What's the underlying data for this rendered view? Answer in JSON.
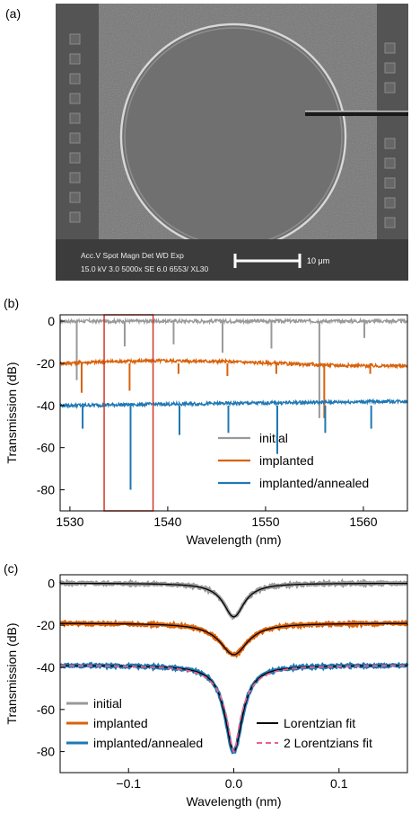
{
  "figure": {
    "panel_a": {
      "label": "(a)",
      "sem_info": {
        "row1": "Acc.V   Spot Magn    Det  WD   Exp",
        "row2": "15.0 kV 3.0   5000x    SE   6.0   6553/ XL30",
        "scale_label": "10 μm"
      }
    },
    "panel_b": {
      "label": "(b)"
    },
    "panel_c": {
      "label": "(c)"
    }
  },
  "colors": {
    "initial": "#999999",
    "implanted": "#d9620b",
    "annealed": "#1f78b4",
    "lorentzian": "#000000",
    "two_lorentzians": "#e8638f",
    "highlight_box": "#d03a2a"
  },
  "chart_data": [
    {
      "type": "line",
      "panel": "(b)",
      "xlabel": "Wavelength (nm)",
      "ylabel": "Transmission (dB)",
      "xlim": [
        1529,
        1564.5
      ],
      "ylim": [
        -90,
        3
      ],
      "xticks": [
        1530,
        1540,
        1550,
        1560
      ],
      "yticks": [
        0,
        -20,
        -40,
        -60,
        -80
      ],
      "legend": {
        "placement": "bottom-right"
      },
      "highlight_box": {
        "x": [
          1533.5,
          1538.5
        ],
        "y": [
          -90,
          3
        ]
      },
      "series": [
        {
          "name": "initial",
          "color_key": "initial",
          "baseline": 0,
          "dips": [
            [
              1530.7,
              -28
            ],
            [
              1535.6,
              -12
            ],
            [
              1540.6,
              -11
            ],
            [
              1545.6,
              -15
            ],
            [
              1550.6,
              -13
            ],
            [
              1555.5,
              -46
            ],
            [
              1560.1,
              -8
            ]
          ]
        },
        {
          "name": "implanted",
          "color_key": "implanted",
          "baseline": -20,
          "dips": [
            [
              1531.2,
              -34
            ],
            [
              1536.1,
              -33
            ],
            [
              1541.1,
              -25
            ],
            [
              1546.1,
              -26
            ],
            [
              1551.1,
              -25
            ],
            [
              1556.0,
              -46
            ],
            [
              1560.7,
              -25
            ]
          ]
        },
        {
          "name": "implanted/annealed",
          "color_key": "annealed",
          "baseline": -40,
          "dips": [
            [
              1531.3,
              -51
            ],
            [
              1536.2,
              -80
            ],
            [
              1541.2,
              -54
            ],
            [
              1546.2,
              -53
            ],
            [
              1551.2,
              -63
            ],
            [
              1556.1,
              -53
            ],
            [
              1560.8,
              -51
            ]
          ]
        }
      ]
    },
    {
      "type": "line",
      "panel": "(c)",
      "xlabel": "Wavelength (nm)",
      "ylabel": "Transmission (dB)",
      "xlim": [
        -0.165,
        0.165
      ],
      "ylim": [
        -90,
        4
      ],
      "xticks": [
        -0.1,
        0,
        0.1
      ],
      "xticklabels": [
        "−0.1",
        "0.0",
        "0.1"
      ],
      "yticks": [
        0,
        -20,
        -40,
        -60,
        -80
      ],
      "legend": {
        "placement": "bottom"
      },
      "series": [
        {
          "name": "initial",
          "color_key": "initial",
          "baseline": 0,
          "depth": 16,
          "width": 0.012
        },
        {
          "name": "implanted",
          "color_key": "implanted",
          "baseline": -19,
          "depth": 15,
          "width": 0.016
        },
        {
          "name": "implanted/annealed",
          "color_key": "annealed",
          "baseline": -39,
          "depth": 41,
          "width": 0.01
        }
      ],
      "fits": [
        {
          "name": "Lorentzian fit",
          "color_key": "lorentzian",
          "dash": false
        },
        {
          "name": "2 Lorentzians fit",
          "color_key": "two_lorentzians",
          "dash": true
        }
      ]
    }
  ]
}
